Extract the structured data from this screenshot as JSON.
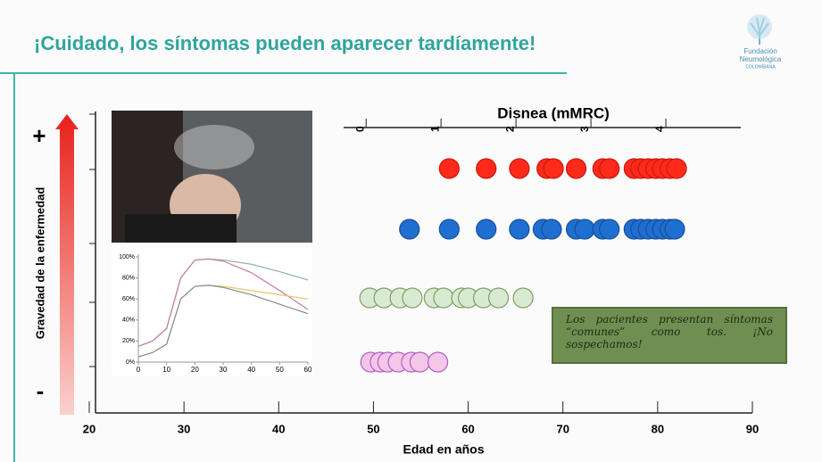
{
  "title": "¡Cuidado, los síntomas pueden aparecer tardíamente!",
  "logo": {
    "line1": "Fundación",
    "line2": "Neumológica",
    "line3": "COLOMBIANA"
  },
  "callout": "Los pacientes presentan síntomas “comunes” como tos. ¡No sospechamos!",
  "chart_data": [
    {
      "type": "dot",
      "x_label": "Edad en años",
      "y_label": "Gravedad de la enfermedad",
      "y_top_label": "+",
      "y_bottom_label": "-",
      "xlim": [
        20,
        90
      ],
      "xticks": [
        20,
        30,
        40,
        50,
        60,
        70,
        80,
        90
      ],
      "x2_label": "Disnea (mMRC)",
      "x2lim": [
        -0.3,
        5
      ],
      "x2ticks": [
        0,
        1,
        2,
        3,
        4
      ],
      "series": [
        {
          "color": "#ff2a1a",
          "values": [
            58.0,
            61.9,
            65.4,
            68.3,
            69.0,
            71.4,
            74.2,
            74.9,
            77.5,
            78.2,
            79.0,
            79.8,
            80.5,
            81.3,
            82.0
          ]
        },
        {
          "color": "#1f6fd0",
          "values": [
            53.8,
            58.0,
            61.9,
            65.4,
            67.9,
            68.8,
            71.4,
            72.3,
            74.2,
            74.9,
            77.5,
            78.2,
            79.0,
            79.8,
            80.5,
            81.3,
            81.8
          ]
        },
        {
          "color": "#d9ead3",
          "values": [
            49.6,
            51.1,
            52.8,
            54.1,
            56.4,
            57.4,
            59.3,
            60.0,
            61.6,
            63.2,
            65.8
          ]
        },
        {
          "color": "#f4c6e8",
          "values": [
            49.7,
            50.7,
            51.5,
            52.6,
            54.0,
            54.9,
            56.8
          ]
        }
      ]
    },
    {
      "type": "line",
      "xlim": [
        0,
        60
      ],
      "xticks": [
        0,
        10,
        20,
        30,
        40,
        50,
        60
      ],
      "ylim": [
        0,
        100
      ],
      "yticks": [
        {
          "value": 0,
          "label": "0%"
        },
        {
          "value": 20,
          "label": "20%"
        },
        {
          "value": 40,
          "label": "40%"
        },
        {
          "value": 60,
          "label": "60%"
        },
        {
          "value": 80,
          "label": "80%"
        },
        {
          "value": 100,
          "label": "100%"
        }
      ],
      "x": [
        0,
        5,
        10,
        15,
        20,
        25,
        30,
        40,
        50,
        60
      ],
      "series": [
        {
          "color": "#8fb59a",
          "values": [
            15,
            20,
            32,
            80,
            97,
            98,
            97,
            93,
            86,
            78
          ]
        },
        {
          "color": "#c77aa8",
          "values": [
            15,
            20,
            32,
            80,
            97,
            98,
            96,
            85,
            68,
            50
          ]
        },
        {
          "color": "#e8c66a",
          "values": [
            5,
            9,
            17,
            60,
            72,
            73,
            72,
            68,
            64,
            60
          ]
        },
        {
          "color": "#8a8a8a",
          "values": [
            5,
            9,
            17,
            60,
            72,
            73,
            71,
            64,
            55,
            46
          ]
        }
      ]
    }
  ]
}
